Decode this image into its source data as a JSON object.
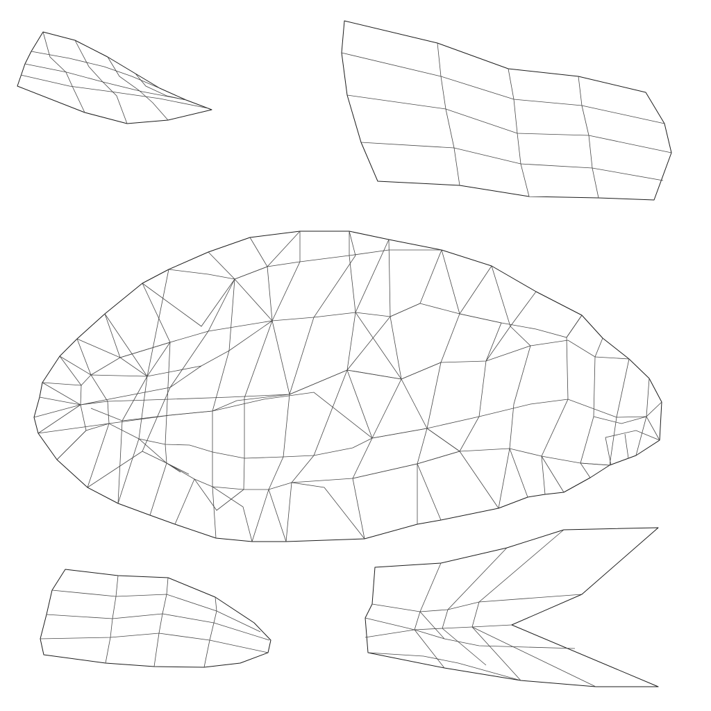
{
  "figure": {
    "background": "#ffffff",
    "line_color": "#1a1a1a",
    "islands": [
      {
        "name": "island-top-left",
        "kind": "quad-grid",
        "rows": 4,
        "cols": 5
      },
      {
        "name": "island-top-right",
        "kind": "quad-grid",
        "rows": 4,
        "cols": 5
      },
      {
        "name": "island-center-body",
        "kind": "triangulated-mesh"
      },
      {
        "name": "island-bottom-left",
        "kind": "quad-grid",
        "rows": 4,
        "cols": 5
      },
      {
        "name": "island-bottom-right",
        "kind": "fan-strips"
      }
    ]
  }
}
